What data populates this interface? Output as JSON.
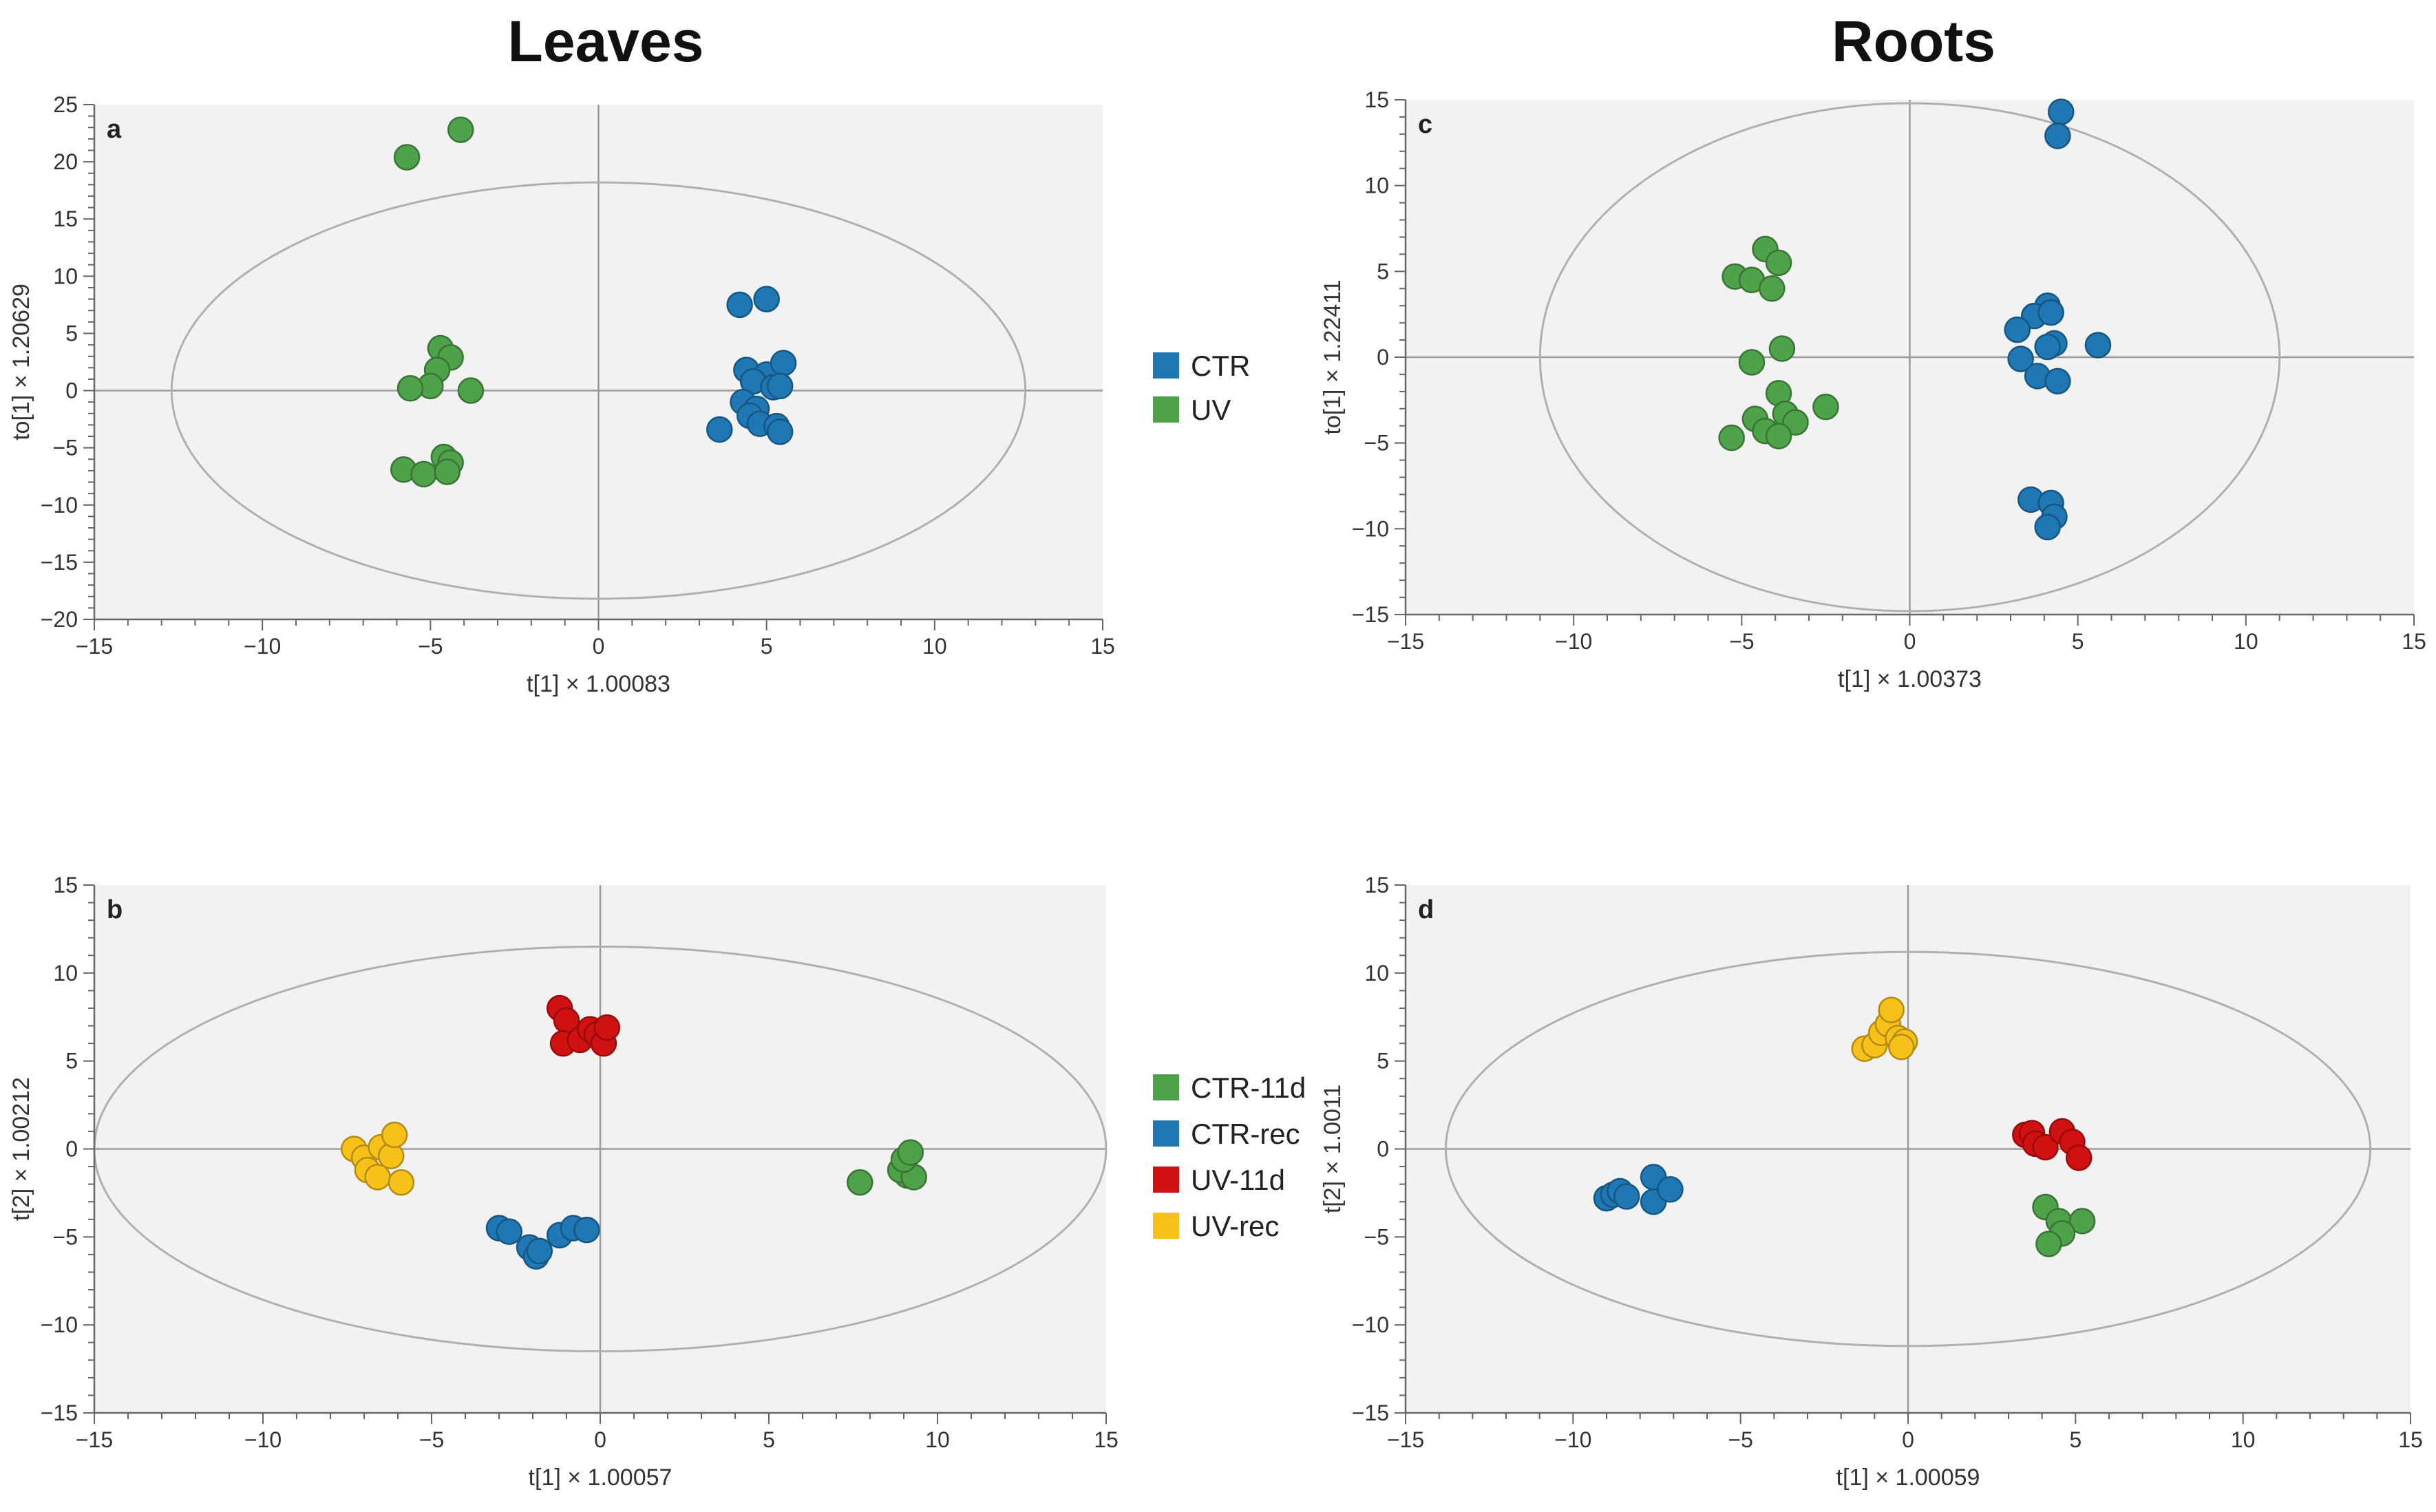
{
  "titles": {
    "left": "Leaves",
    "right": "Roots"
  },
  "colors": {
    "CTR": "#1f77b4",
    "UV": "#4ea24a",
    "CTR-11d": "#4ea24a",
    "CTR-rec": "#1f77b4",
    "UV-11d": "#d01111",
    "UV-rec": "#f7c11a",
    "plot_bg": "#f2f2f2",
    "ellipse": "#b0b0b0",
    "axis": "#9a9a9a"
  },
  "legends": {
    "top": [
      "CTR",
      "UV"
    ],
    "bottom": [
      "CTR-11d",
      "CTR-rec",
      "UV-11d",
      "UV-rec"
    ]
  },
  "chart_data": [
    {
      "id": "a",
      "panel_label": "a",
      "type": "scatter",
      "xlabel": "t[1] × 1.00083",
      "ylabel": "to[1] × 1.20629",
      "xlim": [
        -15,
        15
      ],
      "ylim": [
        -20,
        25
      ],
      "xticks": [
        -15,
        -10,
        -5,
        0,
        5,
        10,
        15
      ],
      "yticks": [
        -20,
        -15,
        -10,
        -5,
        0,
        5,
        10,
        15,
        20,
        25
      ],
      "ellipse": {
        "rx": 12.7,
        "ry": 18.2
      },
      "series": [
        {
          "name": "CTR",
          "points": [
            [
              4.2,
              7.5
            ],
            [
              5,
              8
            ],
            [
              4.4,
              1.8
            ],
            [
              5,
              1.4
            ],
            [
              5.5,
              2.4
            ],
            [
              4.6,
              0.8
            ],
            [
              5.2,
              0.3
            ],
            [
              5.4,
              0.4
            ],
            [
              4.3,
              -1
            ],
            [
              4.7,
              -1.6
            ],
            [
              4.5,
              -2.2
            ],
            [
              4.8,
              -2.9
            ],
            [
              5.3,
              -3.1
            ],
            [
              5.4,
              -3.6
            ],
            [
              3.6,
              -3.4
            ]
          ]
        },
        {
          "name": "UV",
          "points": [
            [
              -5.7,
              20.4
            ],
            [
              -4.1,
              22.8
            ],
            [
              -4.7,
              3.7
            ],
            [
              -4.4,
              2.9
            ],
            [
              -4.8,
              1.8
            ],
            [
              -5,
              0.4
            ],
            [
              -5.6,
              0.2
            ],
            [
              -3.8,
              0
            ],
            [
              -4.6,
              -5.8
            ],
            [
              -4.4,
              -6.3
            ],
            [
              -5.8,
              -6.9
            ],
            [
              -5.2,
              -7.3
            ],
            [
              -4.5,
              -7.1
            ]
          ]
        }
      ]
    },
    {
      "id": "b",
      "panel_label": "b",
      "type": "scatter",
      "xlabel": "t[1] × 1.00057",
      "ylabel": "t[2] × 1.00212",
      "xlim": [
        -15,
        15
      ],
      "ylim": [
        -15,
        15
      ],
      "xticks": [
        -15,
        -10,
        -5,
        0,
        5,
        10,
        15
      ],
      "yticks": [
        -15,
        -10,
        -5,
        0,
        5,
        10,
        15
      ],
      "ellipse": {
        "rx": 15,
        "ry": 11.5
      },
      "series": [
        {
          "name": "CTR-11d",
          "points": [
            [
              7.7,
              -1.9
            ],
            [
              9.1,
              -1.5
            ],
            [
              8.9,
              -1.2
            ],
            [
              9.3,
              -1.6
            ],
            [
              9,
              -0.6
            ],
            [
              9.2,
              -0.2
            ]
          ]
        },
        {
          "name": "CTR-rec",
          "points": [
            [
              -3,
              -4.5
            ],
            [
              -2.7,
              -4.7
            ],
            [
              -2.1,
              -5.6
            ],
            [
              -1.9,
              -6.1
            ],
            [
              -1.8,
              -5.8
            ],
            [
              -1.2,
              -4.9
            ],
            [
              -0.8,
              -4.5
            ],
            [
              -0.4,
              -4.6
            ]
          ]
        },
        {
          "name": "UV-11d",
          "points": [
            [
              -1.2,
              8
            ],
            [
              -1,
              7.3
            ],
            [
              -1.1,
              6
            ],
            [
              -0.6,
              6.2
            ],
            [
              -0.3,
              6.8
            ],
            [
              -0.1,
              6.5
            ],
            [
              0.1,
              6
            ],
            [
              0.2,
              6.9
            ]
          ]
        },
        {
          "name": "UV-rec",
          "points": [
            [
              -7.3,
              0
            ],
            [
              -7,
              -0.5
            ],
            [
              -6.9,
              -1.2
            ],
            [
              -6.6,
              -1.6
            ],
            [
              -6.5,
              0.1
            ],
            [
              -6.2,
              -0.4
            ],
            [
              -6.1,
              0.8
            ],
            [
              -5.9,
              -1.9
            ]
          ]
        }
      ]
    },
    {
      "id": "c",
      "panel_label": "c",
      "type": "scatter",
      "xlabel": "t[1] × 1.00373",
      "ylabel": "to[1] × 1.22411",
      "xlim": [
        -15,
        15
      ],
      "ylim": [
        -15,
        15
      ],
      "xticks": [
        -15,
        -10,
        -5,
        0,
        5,
        10,
        15
      ],
      "yticks": [
        -15,
        -10,
        -5,
        0,
        5,
        10,
        15
      ],
      "ellipse": {
        "rx": 11,
        "ry": 14.8
      },
      "series": [
        {
          "name": "CTR",
          "points": [
            [
              4.5,
              14.3
            ],
            [
              4.4,
              12.9
            ],
            [
              4.1,
              3
            ],
            [
              3.7,
              2.4
            ],
            [
              4.2,
              2.6
            ],
            [
              3.2,
              1.6
            ],
            [
              4.3,
              0.8
            ],
            [
              4.1,
              0.6
            ],
            [
              5.6,
              0.7
            ],
            [
              3.3,
              -0.1
            ],
            [
              3.8,
              -1.1
            ],
            [
              4.4,
              -1.4
            ],
            [
              3.6,
              -8.3
            ],
            [
              4.2,
              -8.5
            ],
            [
              4.3,
              -9.3
            ],
            [
              4.1,
              -9.9
            ]
          ]
        },
        {
          "name": "UV",
          "points": [
            [
              -4.3,
              6.3
            ],
            [
              -3.9,
              5.5
            ],
            [
              -5.2,
              4.7
            ],
            [
              -4.7,
              4.5
            ],
            [
              -4.1,
              4
            ],
            [
              -3.8,
              0.5
            ],
            [
              -4.7,
              -0.3
            ],
            [
              -3.9,
              -2.1
            ],
            [
              -2.5,
              -2.9
            ],
            [
              -4.6,
              -3.6
            ],
            [
              -3.7,
              -3.3
            ],
            [
              -3.4,
              -3.8
            ],
            [
              -4.3,
              -4.3
            ],
            [
              -3.9,
              -4.6
            ],
            [
              -5.3,
              -4.7
            ]
          ]
        }
      ]
    },
    {
      "id": "d",
      "panel_label": "d",
      "type": "scatter",
      "xlabel": "t[1] × 1.00059",
      "ylabel": "t[2] × 1.0011",
      "xlim": [
        -15,
        15
      ],
      "ylim": [
        -15,
        15
      ],
      "xticks": [
        -15,
        -10,
        -5,
        0,
        5,
        10,
        15
      ],
      "yticks": [
        -15,
        -10,
        -5,
        0,
        5,
        10,
        15
      ],
      "ellipse": {
        "rx": 13.8,
        "ry": 11.2
      },
      "series": [
        {
          "name": "CTR-11d",
          "points": [
            [
              4.1,
              -3.3
            ],
            [
              4.5,
              -4.1
            ],
            [
              5.2,
              -4.1
            ],
            [
              4.6,
              -4.8
            ],
            [
              4.2,
              -5.4
            ]
          ]
        },
        {
          "name": "CTR-rec",
          "points": [
            [
              -9,
              -2.8
            ],
            [
              -8.8,
              -2.6
            ],
            [
              -8.6,
              -2.4
            ],
            [
              -8.4,
              -2.7
            ],
            [
              -7.6,
              -1.6
            ],
            [
              -7.6,
              -3
            ],
            [
              -7.1,
              -2.3
            ]
          ]
        },
        {
          "name": "UV-11d",
          "points": [
            [
              3.5,
              0.8
            ],
            [
              3.7,
              0.9
            ],
            [
              3.8,
              0.3
            ],
            [
              4.1,
              0.1
            ],
            [
              4.6,
              1
            ],
            [
              4.9,
              0.4
            ],
            [
              5.1,
              -0.5
            ]
          ]
        },
        {
          "name": "UV-rec",
          "points": [
            [
              -1.3,
              5.7
            ],
            [
              -1,
              5.9
            ],
            [
              -0.8,
              6.6
            ],
            [
              -0.6,
              7.1
            ],
            [
              -0.5,
              7.9
            ],
            [
              -0.3,
              6.3
            ],
            [
              -0.1,
              6.1
            ],
            [
              -0.2,
              5.8
            ]
          ]
        }
      ]
    }
  ]
}
